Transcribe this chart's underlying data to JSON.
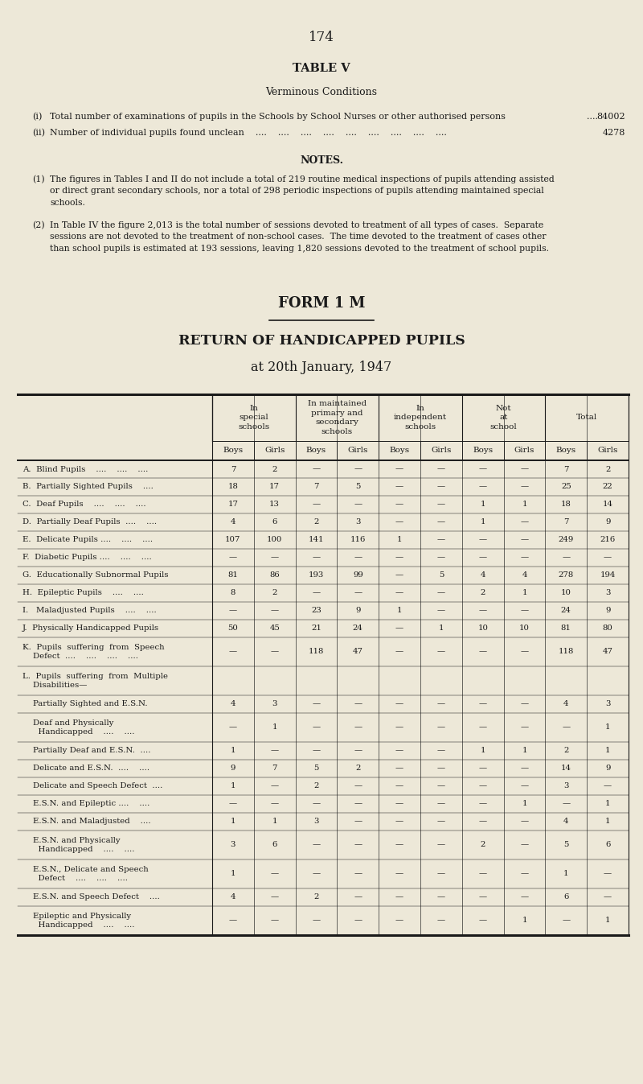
{
  "bg_color": "#ede8d8",
  "text_color": "#1a1a1a",
  "page_number": "174",
  "table_title": "TABLE V",
  "table_subtitle": "Verminous Conditions",
  "form_title": "FORM 1 M",
  "return_title": "RETURN OF HANDICAPPED PUPILS",
  "return_subtitle": "at 20th January, 1947",
  "rows": [
    {
      "label": "A.  Blind Pupils    ....    ....    ....",
      "indent": false,
      "data": [
        "7",
        "2",
        "—",
        "—",
        "—",
        "—",
        "—",
        "—",
        "7",
        "2"
      ]
    },
    {
      "label": "B.  Partially Sighted Pupils    ....",
      "indent": false,
      "data": [
        "18",
        "17",
        "7",
        "5",
        "—",
        "—",
        "—",
        "—",
        "25",
        "22"
      ]
    },
    {
      "label": "C.  Deaf Pupils    ....    ....    ....",
      "indent": false,
      "data": [
        "17",
        "13",
        "—",
        "—",
        "—",
        "—",
        "1",
        "1",
        "18",
        "14"
      ]
    },
    {
      "label": "D.  Partially Deaf Pupils  ....    ....",
      "indent": false,
      "data": [
        "4",
        "6",
        "2",
        "3",
        "—",
        "—",
        "1",
        "—",
        "7",
        "9"
      ]
    },
    {
      "label": "E.  Delicate Pupils ....    ....    ....",
      "indent": false,
      "data": [
        "107",
        "100",
        "141",
        "116",
        "1",
        "—",
        "—",
        "—",
        "249",
        "216"
      ]
    },
    {
      "label": "F.  Diabetic Pupils ....    ....    ....",
      "indent": false,
      "data": [
        "—",
        "—",
        "—",
        "—",
        "—",
        "—",
        "—",
        "—",
        "—",
        "—"
      ]
    },
    {
      "label": "G.  Educationally Subnormal Pupils",
      "indent": false,
      "data": [
        "81",
        "86",
        "193",
        "99",
        "—",
        "5",
        "4",
        "4",
        "278",
        "194"
      ]
    },
    {
      "label": "H.  Epileptic Pupils    ....    ....",
      "indent": false,
      "data": [
        "8",
        "2",
        "—",
        "—",
        "—",
        "—",
        "2",
        "1",
        "10",
        "3"
      ]
    },
    {
      "label": "I.   Maladjusted Pupils    ....    ....",
      "indent": false,
      "data": [
        "—",
        "—",
        "23",
        "9",
        "1",
        "—",
        "—",
        "—",
        "24",
        "9"
      ]
    },
    {
      "label": "J.  Physically Handicapped Pupils",
      "indent": false,
      "data": [
        "50",
        "45",
        "21",
        "24",
        "—",
        "1",
        "10",
        "10",
        "81",
        "80"
      ]
    },
    {
      "label": "K.  Pupils  suffering  from  Speech\n    Defect  ....    ....    ....    ....",
      "indent": false,
      "data": [
        "—",
        "—",
        "118",
        "47",
        "—",
        "—",
        "—",
        "—",
        "118",
        "47"
      ]
    },
    {
      "label": "L.  Pupils  suffering  from  Multiple\n    Disabilities—",
      "indent": false,
      "data": [
        "",
        "",
        "",
        "",
        "",
        "",
        "",
        "",
        "",
        ""
      ]
    },
    {
      "label": "    Partially Sighted and E.S.N.",
      "indent": true,
      "data": [
        "4",
        "3",
        "—",
        "—",
        "—",
        "—",
        "—",
        "—",
        "4",
        "3"
      ]
    },
    {
      "label": "    Deaf and Physically\n      Handicapped    ....    ....",
      "indent": true,
      "data": [
        "—",
        "1",
        "—",
        "—",
        "—",
        "—",
        "—",
        "—",
        "—",
        "1"
      ]
    },
    {
      "label": "    Partially Deaf and E.S.N.  ....",
      "indent": true,
      "data": [
        "1",
        "—",
        "—",
        "—",
        "—",
        "—",
        "1",
        "1",
        "2",
        "1"
      ]
    },
    {
      "label": "    Delicate and E.S.N.  ....    ....",
      "indent": true,
      "data": [
        "9",
        "7",
        "5",
        "2",
        "—",
        "—",
        "—",
        "—",
        "14",
        "9"
      ]
    },
    {
      "label": "    Delicate and Speech Defect  ....",
      "indent": true,
      "data": [
        "1",
        "—",
        "2",
        "—",
        "—",
        "—",
        "—",
        "—",
        "3",
        "—"
      ]
    },
    {
      "label": "    E.S.N. and Epileptic ....    ....",
      "indent": true,
      "data": [
        "—",
        "—",
        "—",
        "—",
        "—",
        "—",
        "—",
        "1",
        "—",
        "1"
      ]
    },
    {
      "label": "    E.S.N. and Maladjusted    ....",
      "indent": true,
      "data": [
        "1",
        "1",
        "3",
        "—",
        "—",
        "—",
        "—",
        "—",
        "4",
        "1"
      ]
    },
    {
      "label": "    E.S.N. and Physically\n      Handicapped    ....    ....",
      "indent": true,
      "data": [
        "3",
        "6",
        "—",
        "—",
        "—",
        "—",
        "2",
        "—",
        "5",
        "6"
      ]
    },
    {
      "label": "    E.S.N., Delicate and Speech\n      Defect    ....    ....    ....",
      "indent": true,
      "data": [
        "1",
        "—",
        "—",
        "—",
        "—",
        "—",
        "—",
        "—",
        "1",
        "—"
      ]
    },
    {
      "label": "    E.S.N. and Speech Defect    ....",
      "indent": true,
      "data": [
        "4",
        "—",
        "2",
        "—",
        "—",
        "—",
        "—",
        "—",
        "6",
        "—"
      ]
    },
    {
      "label": "    Epileptic and Physically\n      Handicapped    ....    ....",
      "indent": true,
      "data": [
        "—",
        "—",
        "—",
        "—",
        "—",
        "—",
        "—",
        "1",
        "—",
        "1"
      ]
    }
  ]
}
